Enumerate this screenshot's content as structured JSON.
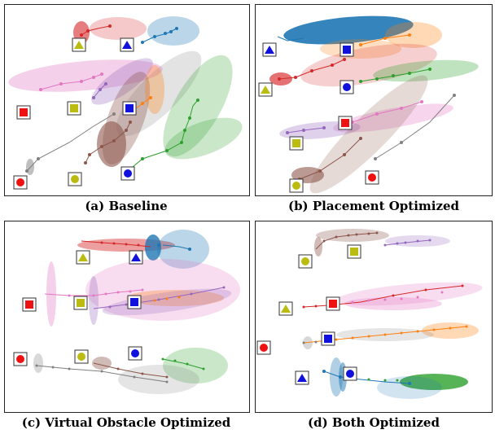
{
  "captions": {
    "a": "(a) Baseline",
    "b": "(b) Placement Optimized",
    "c": "(c) Virtual Obstacle Optimized",
    "d": "(d) Both Optimized"
  },
  "colors": {
    "red": "#d62728",
    "blue": "#1f77b4",
    "orange": "#ff7f0e",
    "green": "#2ca02c",
    "pink": "#e377c2",
    "purple": "#9467bd",
    "brown": "#8c564b",
    "gray": "#7f7f7f",
    "marker_red": "#ee1111",
    "marker_blue": "#1111dd",
    "marker_olive": "#bbbb11"
  },
  "marker_icons": [
    "red-square-icon",
    "red-circle-icon",
    "olive-square-icon",
    "olive-circle-icon",
    "olive-triangle-icon",
    "blue-square-icon",
    "blue-circle-icon",
    "blue-triangle-icon"
  ]
}
